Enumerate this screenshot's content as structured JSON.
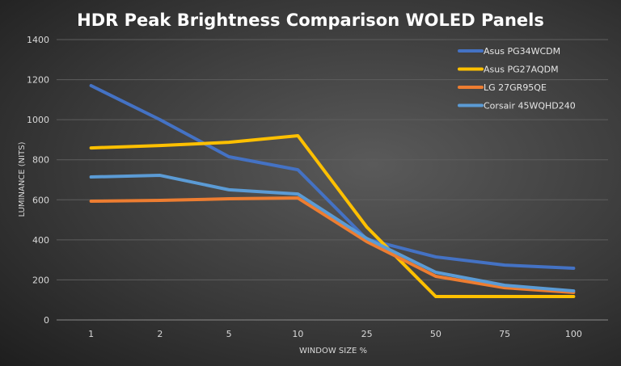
{
  "chart_data": {
    "type": "line",
    "title": "HDR Peak Brightness Comparison WOLED Panels",
    "xlabel": "WINDOW SIZE %",
    "ylabel": "LUMINANCE (NITS)",
    "categories": [
      "1",
      "2",
      "5",
      "10",
      "25",
      "50",
      "75",
      "100"
    ],
    "ylim": [
      0,
      1400
    ],
    "yticks": [
      "0",
      "200",
      "400",
      "600",
      "800",
      "1000",
      "1200",
      "1400"
    ],
    "grid": true,
    "legend": "top-right",
    "series": [
      {
        "name": "Asus PG34WCDM",
        "color": "#4472c4",
        "values": [
          1170,
          1000,
          815,
          750,
          403,
          315,
          274,
          258
        ]
      },
      {
        "name": "Asus PG27AQDM",
        "color": "#ffc000",
        "values": [
          859,
          871,
          887,
          920,
          464,
          117,
          117,
          117
        ]
      },
      {
        "name": "LG 27GR95QE",
        "color": "#ed7d31",
        "values": [
          593,
          597,
          605,
          609,
          391,
          218,
          161,
          137
        ]
      },
      {
        "name": "Corsair 45WQHD240",
        "color": "#5b9bd5",
        "values": [
          714,
          722,
          650,
          629,
          407,
          238,
          173,
          145
        ]
      }
    ]
  }
}
